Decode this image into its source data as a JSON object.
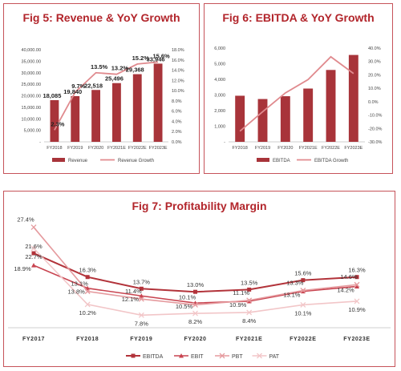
{
  "colors": {
    "title": "#b2252b",
    "border": "#c6535a",
    "bar": "#a8343a",
    "growth_line": "#e08a8e",
    "ebitda": "#b2333a",
    "ebit": "#c84450",
    "pbt": "#e59a9e",
    "pat": "#f2c6c8"
  },
  "chart_data": [
    {
      "type": "bar",
      "title": "Fig 5: Revenue & YoY Growth",
      "categories": [
        "FY2018",
        "FY2019",
        "FY2020",
        "FY2021E",
        "FY2022E",
        "FY2023E"
      ],
      "series": [
        {
          "name": "Revenue",
          "type": "bar",
          "axis": "left",
          "values": [
            18085,
            19840,
            22518,
            25496,
            29368,
            33946
          ],
          "labels": [
            "18,085",
            "19,840",
            "22,518",
            "25,496",
            "29,368",
            "33,946"
          ]
        },
        {
          "name": "Revenue Growth",
          "type": "line",
          "axis": "right",
          "values": [
            2.3,
            9.7,
            13.5,
            13.2,
            15.2,
            15.6
          ],
          "labels": [
            "2.3%",
            "9.7%",
            "13.5%",
            "13.2%",
            "15.2%",
            "15.6%"
          ]
        }
      ],
      "y_left": {
        "min": 0,
        "max": 40000,
        "ticks": [
          "-",
          "5,000.00",
          "10,000.00",
          "15,000.00",
          "20,000.00",
          "25,000.00",
          "30,000.00",
          "35,000.00",
          "40,000.00"
        ]
      },
      "y_right": {
        "min": 0,
        "max": 18,
        "ticks": [
          "0.0%",
          "2.0%",
          "4.0%",
          "6.0%",
          "8.0%",
          "10.0%",
          "12.0%",
          "14.0%",
          "16.0%",
          "18.0%"
        ]
      },
      "legend_position": "bottom",
      "grid": false
    },
    {
      "type": "bar",
      "title": "Fig 6: EBITDA & YoY Growth",
      "categories": [
        "FY2018",
        "FY2019",
        "FY2020",
        "FY2021E",
        "FY2022E",
        "FY2023E"
      ],
      "series": [
        {
          "name": "EBITDA",
          "type": "bar",
          "axis": "left",
          "values": [
            2950,
            2740,
            2920,
            3410,
            4600,
            5560
          ]
        },
        {
          "name": "EBITDA Growth",
          "type": "line",
          "axis": "right",
          "values": [
            -22,
            -7.5,
            6.5,
            16.5,
            33.5,
            21
          ]
        }
      ],
      "y_left": {
        "min": 0,
        "max": 6000,
        "ticks": [
          "-",
          "1,000",
          "2,000",
          "3,000",
          "4,000",
          "5,000",
          "6,000"
        ]
      },
      "y_right": {
        "min": -30,
        "max": 40,
        "ticks": [
          "-30.0%",
          "-20.0%",
          "-10.0%",
          "0.0%",
          "10.0%",
          "20.0%",
          "30.0%",
          "40.0%"
        ]
      },
      "legend_position": "bottom",
      "grid": false
    },
    {
      "type": "line",
      "title": "Fig 7: Profitability Margin",
      "categories": [
        "FY2017",
        "FY2018",
        "FY2019",
        "FY2020",
        "FY2021E",
        "FY2022E",
        "FY2023E"
      ],
      "series": [
        {
          "name": "EBITDA",
          "marker": "square",
          "values": [
            21.6,
            16.3,
            13.7,
            13.0,
            13.5,
            15.6,
            16.3
          ],
          "labels": [
            "21.6%",
            "16.3%",
            "13.7%",
            "13.0%",
            "13.5%",
            "15.6%",
            "16.3%"
          ]
        },
        {
          "name": "EBIT",
          "marker": "triangle",
          "values": [
            18.9,
            13.8,
            12.1,
            10.5,
            10.9,
            13.1,
            14.2
          ],
          "labels": [
            "18.9%",
            "13.8%",
            "12.1%",
            "10.5%",
            "10.9%",
            "13.1%",
            "14.2%"
          ]
        },
        {
          "name": "PBT",
          "marker": "x",
          "values": [
            27.4,
            13.1,
            11.4,
            10.1,
            11.1,
            13.3,
            14.6
          ],
          "labels": [
            "27.4%",
            "13.1%",
            "11.4%",
            "10.1%",
            "11.1%",
            "13.3%",
            "14.6%"
          ]
        },
        {
          "name": "PAT",
          "marker": "x",
          "values": [
            22.7,
            10.2,
            7.8,
            8.2,
            8.4,
            10.1,
            10.9
          ],
          "labels": [
            "22.7%",
            "10.2%",
            "7.8%",
            "8.2%",
            "8.4%",
            "10.1%",
            "10.9%"
          ]
        }
      ],
      "y_range": [
        5,
        30
      ],
      "legend_position": "bottom",
      "grid": false
    }
  ]
}
